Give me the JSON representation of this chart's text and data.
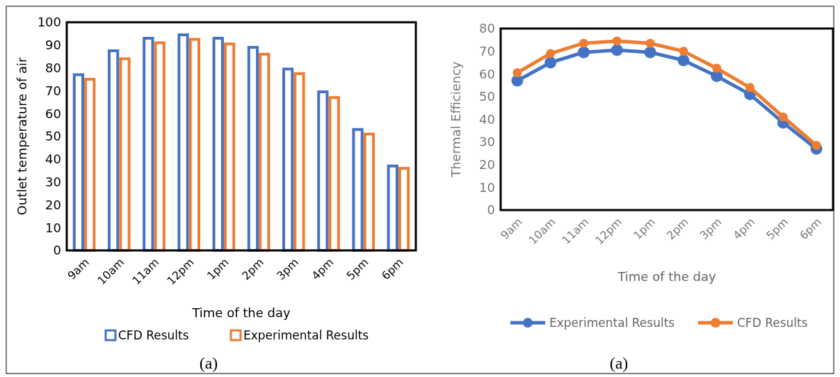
{
  "chart_data": [
    {
      "type": "bar",
      "xlabel": "Time of the day",
      "ylabel": "Outlet temperature of air",
      "categories": [
        "9am",
        "10am",
        "11am",
        "12pm",
        "1pm",
        "2pm",
        "3pm",
        "4pm",
        "5pm",
        "6pm"
      ],
      "series": [
        {
          "name": "CFD Results",
          "color": "#4472c4",
          "values": [
            77,
            87.5,
            93,
            94.5,
            93,
            89,
            79.5,
            69.5,
            53,
            37
          ]
        },
        {
          "name": "Experimental Results",
          "color": "#ed7d31",
          "values": [
            75,
            84,
            91,
            92.5,
            90.5,
            86,
            77.5,
            67,
            51,
            36
          ]
        }
      ],
      "ylim": [
        0,
        100
      ],
      "yticks": [
        0,
        10,
        20,
        30,
        40,
        50,
        60,
        70,
        80,
        90,
        100
      ],
      "legend": "bottom",
      "annotations": [
        "(a)"
      ]
    },
    {
      "type": "line",
      "xlabel": "Time of the day",
      "ylabel": "Thermal Efficiency",
      "categories": [
        "9am",
        "10am",
        "11am",
        "12pm",
        "1pm",
        "2pm",
        "3pm",
        "4pm",
        "5pm",
        "6pm"
      ],
      "series": [
        {
          "name": "Experimental Results",
          "color": "#4472c4",
          "values": [
            57,
            65,
            69.5,
            70.5,
            69.5,
            66,
            59,
            51,
            38.5,
            27
          ]
        },
        {
          "name": "CFD Results",
          "color": "#ed7d31",
          "values": [
            60.5,
            69,
            73.5,
            74.5,
            73.5,
            70,
            62.5,
            54,
            41,
            28.5
          ]
        }
      ],
      "ylim": [
        0,
        80
      ],
      "yticks": [
        0,
        10,
        20,
        30,
        40,
        50,
        60,
        70,
        80
      ],
      "marker": "circle",
      "legend": "bottom",
      "annotations": [
        "(a)"
      ]
    }
  ]
}
